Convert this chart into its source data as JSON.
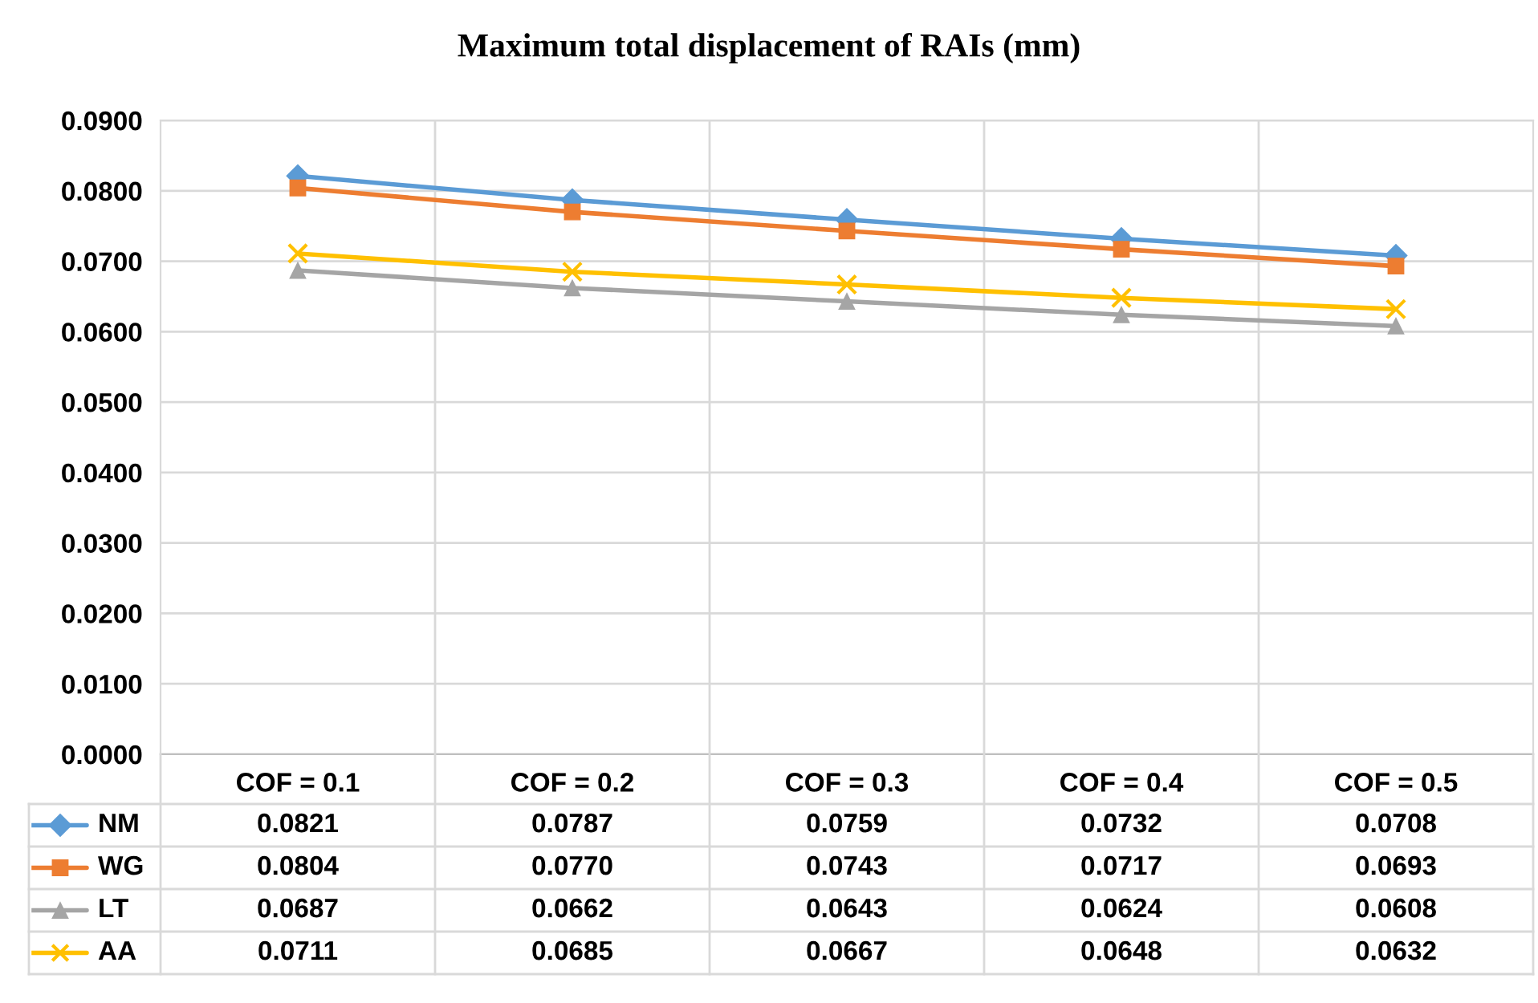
{
  "chart_data": {
    "type": "line",
    "title": "Maximum total displacement of RAIs (mm)",
    "categories": [
      "COF = 0.1",
      "COF = 0.2",
      "COF = 0.3",
      "COF = 0.4",
      "COF = 0.5"
    ],
    "series": [
      {
        "name": "NM",
        "color": "#5b9bd5",
        "marker": "diamond",
        "values": [
          0.0821,
          0.0787,
          0.0759,
          0.0732,
          0.0708
        ],
        "value_labels": [
          "0.0821",
          "0.0787",
          "0.0759",
          "0.0732",
          "0.0708"
        ]
      },
      {
        "name": "WG",
        "color": "#ed7d31",
        "marker": "square",
        "values": [
          0.0804,
          0.077,
          0.0743,
          0.0717,
          0.0693
        ],
        "value_labels": [
          "0.0804",
          "0.0770",
          "0.0743",
          "0.0717",
          "0.0693"
        ]
      },
      {
        "name": "LT",
        "color": "#a5a5a5",
        "marker": "triangle",
        "values": [
          0.0687,
          0.0662,
          0.0643,
          0.0624,
          0.0608
        ],
        "value_labels": [
          "0.0687",
          "0.0662",
          "0.0643",
          "0.0624",
          "0.0608"
        ]
      },
      {
        "name": "AA",
        "color": "#ffc000",
        "marker": "cross",
        "values": [
          0.0711,
          0.0685,
          0.0667,
          0.0648,
          0.0632
        ],
        "value_labels": [
          "0.0711",
          "0.0685",
          "0.0667",
          "0.0648",
          "0.0632"
        ]
      }
    ],
    "ylim": [
      0,
      0.09
    ],
    "yticks": [
      {
        "value": 0,
        "label": "0.0000"
      },
      {
        "value": 0.01,
        "label": "0.0100"
      },
      {
        "value": 0.02,
        "label": "0.0200"
      },
      {
        "value": 0.03,
        "label": "0.0300"
      },
      {
        "value": 0.04,
        "label": "0.0400"
      },
      {
        "value": 0.05,
        "label": "0.0500"
      },
      {
        "value": 0.06,
        "label": "0.0600"
      },
      {
        "value": 0.07,
        "label": "0.0700"
      },
      {
        "value": 0.08,
        "label": "0.0800"
      },
      {
        "value": 0.09,
        "label": "0.0900"
      }
    ],
    "grid": true,
    "legend": "bottom",
    "line_style": "solid"
  }
}
